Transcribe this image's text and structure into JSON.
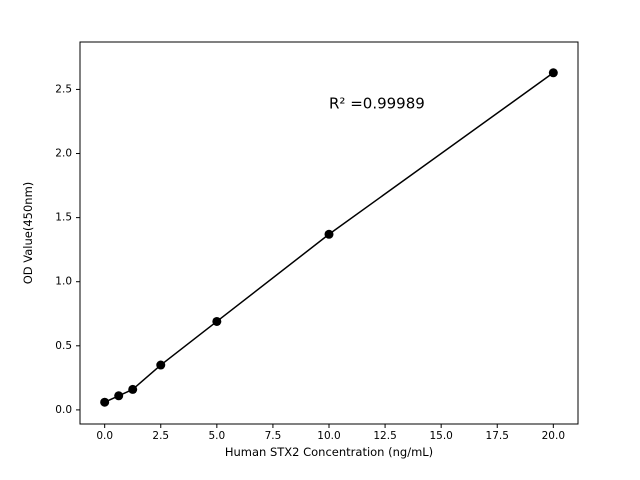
{
  "figure": {
    "background": "#ffffff",
    "foreground": "#000000"
  },
  "chart_data": {
    "type": "scatter",
    "title": "",
    "xlabel": "Human STX2 Concentration (ng/mL)",
    "ylabel": "OD Value(450nm)",
    "x": [
      0,
      0.625,
      1.25,
      2.5,
      5,
      10,
      20
    ],
    "y": [
      0.06,
      0.11,
      0.16,
      0.35,
      0.69,
      1.37,
      2.63
    ],
    "line": true,
    "marker": "circle",
    "marker_color": "#000000",
    "line_color": "#000000",
    "xticks": [
      0.0,
      2.5,
      5.0,
      7.5,
      10.0,
      12.5,
      15.0,
      17.5,
      20.0
    ],
    "xtick_labels": [
      "0.0",
      "2.5",
      "5.0",
      "7.5",
      "10.0",
      "12.5",
      "15.0",
      "17.5",
      "20.0"
    ],
    "yticks": [
      0.0,
      0.5,
      1.0,
      1.5,
      2.0,
      2.5
    ],
    "ytick_labels": [
      "0.0",
      "0.5",
      "1.0",
      "1.5",
      "2.0",
      "2.5"
    ],
    "xlim": [
      -1.1,
      21.1
    ],
    "ylim": [
      -0.11,
      2.87
    ],
    "grid": false,
    "legend": null,
    "annotation": {
      "text": "R² =0.99989",
      "x": 10.0,
      "y": 2.35
    }
  }
}
